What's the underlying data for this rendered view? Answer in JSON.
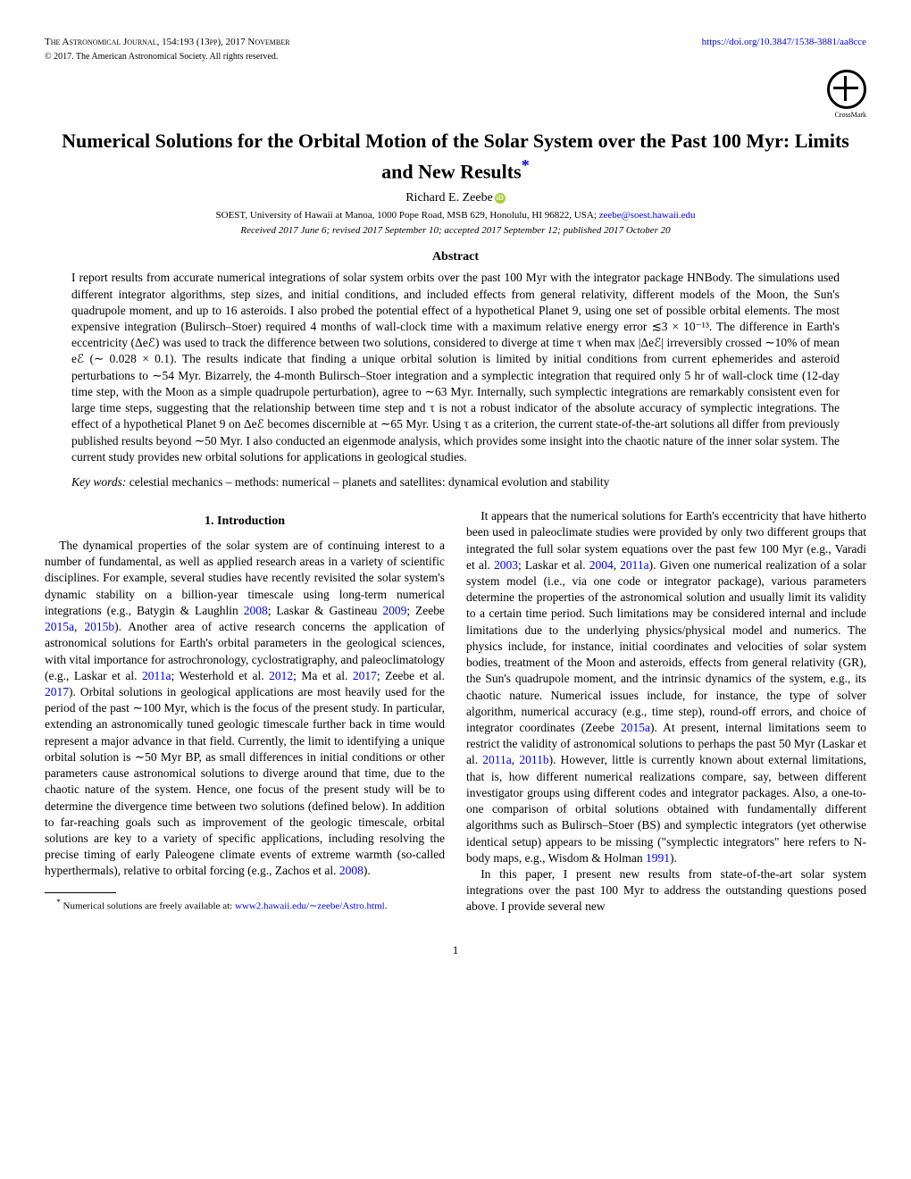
{
  "header": {
    "journal": "The Astronomical Journal, 154:193 (13pp), 2017 November",
    "doi_url": "https://doi.org/10.3847/1538-3881/aa8cce",
    "copyright": "© 2017. The American Astronomical Society. All rights reserved.",
    "crossmark_label": "CrossMark"
  },
  "title": "Numerical Solutions for the Orbital Motion of the Solar System over the Past 100 Myr: Limits and New Results",
  "title_marker": "*",
  "author": "Richard E. Zeebe",
  "affiliation": "SOEST, University of Hawaii at Manoa, 1000 Pope Road, MSB 629, Honolulu, HI 96822, USA; ",
  "email": "zeebe@soest.hawaii.edu",
  "dates": "Received 2017 June 6; revised 2017 September 10; accepted 2017 September 12; published 2017 October 20",
  "abstract_heading": "Abstract",
  "abstract": "I report results from accurate numerical integrations of solar system orbits over the past 100 Myr with the integrator package HNBody. The simulations used different integrator algorithms, step sizes, and initial conditions, and included effects from general relativity, different models of the Moon, the Sun's quadrupole moment, and up to 16 asteroids. I also probed the potential effect of a hypothetical Planet 9, using one set of possible orbital elements. The most expensive integration (Bulirsch–Stoer) required 4 months of wall-clock time with a maximum relative energy error ≲3 × 10⁻¹³. The difference in Earth's eccentricity (Δeℰ) was used to track the difference between two solutions, considered to diverge at time τ when max |Δeℰ| irreversibly crossed ∼10% of mean eℰ (∼ 0.028 × 0.1). The results indicate that finding a unique orbital solution is limited by initial conditions from current ephemerides and asteroid perturbations to ∼54 Myr. Bizarrely, the 4-month Bulirsch–Stoer integration and a symplectic integration that required only 5 hr of wall-clock time (12-day time step, with the Moon as a simple quadrupole perturbation), agree to ∼63 Myr. Internally, such symplectic integrations are remarkably consistent even for large time steps, suggesting that the relationship between time step and τ is not a robust indicator of the absolute accuracy of symplectic integrations. The effect of a hypothetical Planet 9 on Δeℰ becomes discernible at ∼65 Myr. Using τ as a criterion, the current state-of-the-art solutions all differ from previously published results beyond ∼50 Myr. I also conducted an eigenmode analysis, which provides some insight into the chaotic nature of the inner solar system. The current study provides new orbital solutions for applications in geological studies.",
  "keywords_label": "Key words:",
  "keywords": " celestial mechanics – methods: numerical – planets and satellites: dynamical evolution and stability",
  "section1_heading": "1. Introduction",
  "col1_para1_a": "The dynamical properties of the solar system are of continuing interest to a number of fundamental, as well as applied research areas in a variety of scientific disciplines. For example, several studies have recently revisited the solar system's dynamic stability on a billion-year timescale using long-term numerical integrations (e.g., Batygin & Laughlin ",
  "ref_2008": "2008",
  "col1_para1_b": "; Laskar & Gastineau ",
  "ref_2009": "2009",
  "col1_para1_c": "; Zeebe ",
  "ref_2015a": "2015a",
  "col1_para1_d": ", ",
  "ref_2015b": "2015b",
  "col1_para1_e": "). Another area of active research concerns the application of astronomical solutions for Earth's orbital parameters in the geological sciences, with vital importance for astrochronology, cyclostratigraphy, and paleoclimatology (e.g., Laskar et al. ",
  "ref_2011a": "2011a",
  "col1_para1_f": "; Westerhold et al. ",
  "ref_2012": "2012",
  "col1_para1_g": "; Ma et al. ",
  "ref_2017": "2017",
  "col1_para1_h": "; Zeebe et al. ",
  "ref_2017b": "2017",
  "col1_para1_i": "). Orbital solutions in geological applications are most heavily used for the period of the past ∼100 Myr, which is the focus of the present study. In particular, extending an astronomically tuned geologic timescale further back in time would represent a major advance in that field. Currently, the limit to identifying a unique orbital solution is ∼50 Myr BP, as small differences in initial conditions or other parameters cause astronomical solutions to diverge around that time, due to the chaotic nature of the system. Hence, one focus of the present study will be to determine the divergence time between two solutions (defined below). In addition to far-reaching goals such as improvement of the geologic timescale, orbital solutions are key to a variety of specific applications, including resolving the precise timing of early Paleogene climate events of extreme warmth (so-called hyperthermals), relative to orbital forcing (e.g., Zachos et al. ",
  "ref_2008b": "2008",
  "col1_para1_j": ").",
  "col2_para1_a": "It appears that the numerical solutions for Earth's eccentricity that have hitherto been used in paleoclimate studies were provided by only two different groups that integrated the full solar system equations over the past few 100 Myr (e.g., Varadi et al. ",
  "ref_2003": "2003",
  "col2_para1_b": "; Laskar et al. ",
  "ref_2004": "2004",
  "col2_para1_c": ", ",
  "ref_2011a2": "2011a",
  "col2_para1_d": "). Given one numerical realization of a solar system model (i.e., via one code or integrator package), various parameters determine the properties of the astronomical solution and usually limit its validity to a certain time period. Such limitations may be considered internal and include limitations due to the underlying physics/physical model and numerics. The physics include, for instance, initial coordinates and velocities of solar system bodies, treatment of the Moon and asteroids, effects from general relativity (GR), the Sun's quadrupole moment, and the intrinsic dynamics of the system, e.g., its chaotic nature. Numerical issues include, for instance, the type of solver algorithm, numerical accuracy (e.g., time step), round-off errors, and choice of integrator coordinates (Zeebe ",
  "ref_2015a2": "2015a",
  "col2_para1_e": "). At present, internal limitations seem to restrict the validity of astronomical solutions to perhaps the past 50 Myr (Laskar et al. ",
  "ref_2011a3": "2011a",
  "col2_para1_f": ", ",
  "ref_2011b": "2011b",
  "col2_para1_g": "). However, little is currently known about external limitations, that is, how different numerical realizations compare, say, between different investigator groups using different codes and integrator packages. Also, a one-to-one comparison of orbital solutions obtained with fundamentally different algorithms such as Bulirsch–Stoer (BS) and symplectic integrators (yet otherwise identical setup) appears to be missing (\"symplectic integrators\" here refers to N-body maps, e.g., Wisdom & Holman ",
  "ref_1991": "1991",
  "col2_para1_h": ").",
  "col2_para2": "In this paper, I present new results from state-of-the-art solar system integrations over the past 100 Myr to address the outstanding questions posed above. I provide several new",
  "footnote_marker": "*",
  "footnote_text": " Numerical solutions are freely available at: ",
  "footnote_link": "www2.hawaii.edu/∼zeebe/Astro.html",
  "footnote_end": ".",
  "page_number": "1"
}
